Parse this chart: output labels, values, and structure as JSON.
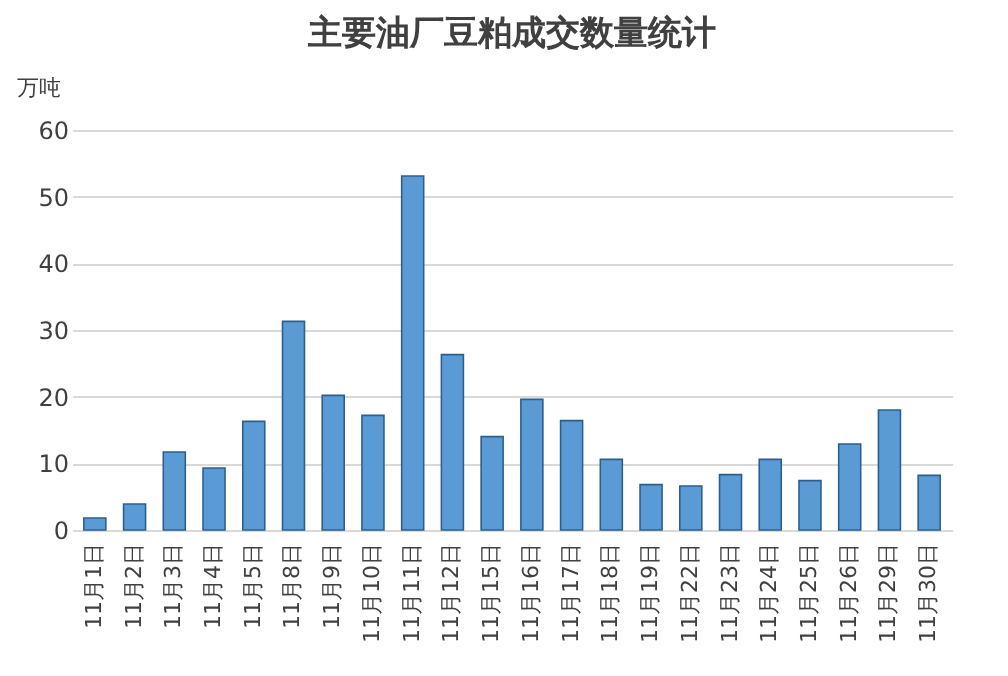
{
  "chart_data": {
    "type": "bar",
    "title": "主要油厂豆粕成交数量统计",
    "ylabel": "万吨",
    "categories": [
      "11月1日",
      "11月2日",
      "11月3日",
      "11月4日",
      "11月5日",
      "11月8日",
      "11月9日",
      "11月10日",
      "11月11日",
      "11月12日",
      "11月15日",
      "11月16日",
      "11月17日",
      "11月18日",
      "11月19日",
      "11月22日",
      "11月23日",
      "11月24日",
      "11月25日",
      "11月26日",
      "11月29日",
      "11月30日"
    ],
    "values": [
      1.8,
      3.9,
      11.7,
      9.3,
      16.3,
      31.3,
      20.2,
      17.2,
      53.1,
      26.3,
      14,
      19.6,
      16.4,
      10.6,
      6.8,
      6.6,
      8.3,
      10.6,
      7.4,
      12.9,
      18,
      8.2
    ],
    "color": "#5b9bd5",
    "ylim": [
      0,
      60
    ],
    "yticks": [
      0,
      10,
      20,
      30,
      40,
      50,
      60
    ],
    "grid": "y"
  }
}
